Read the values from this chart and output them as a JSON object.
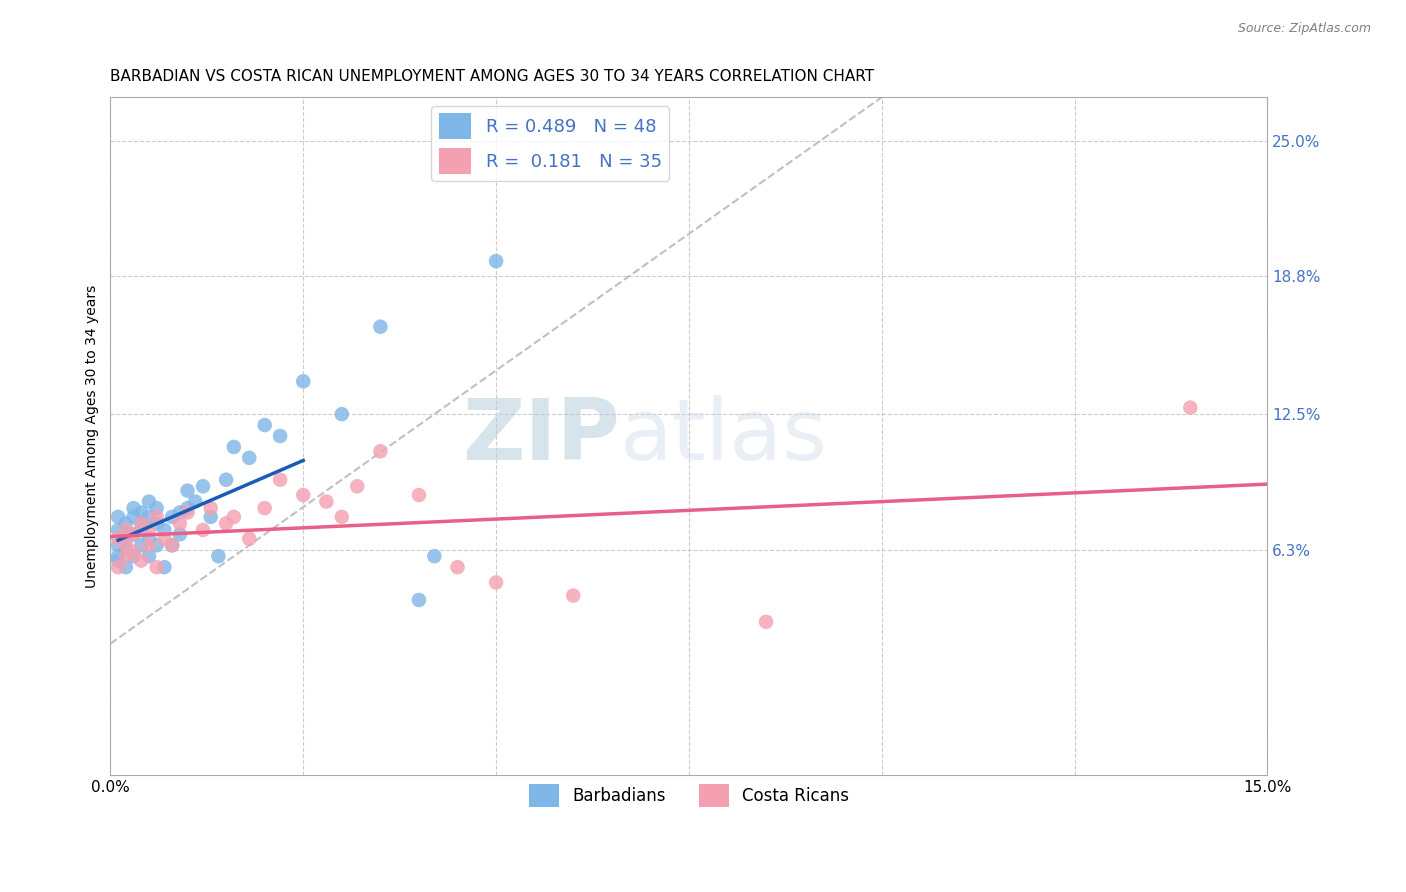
{
  "title": "BARBADIAN VS COSTA RICAN UNEMPLOYMENT AMONG AGES 30 TO 34 YEARS CORRELATION CHART",
  "source": "Source: ZipAtlas.com",
  "ylabel": "Unemployment Among Ages 30 to 34 years",
  "xlim": [
    0.0,
    0.15
  ],
  "ylim": [
    -0.04,
    0.27
  ],
  "xtick_vals": [
    0.0,
    0.025,
    0.05,
    0.075,
    0.1,
    0.125,
    0.15
  ],
  "xtick_labels": [
    "0.0%",
    "",
    "",
    "",
    "",
    "",
    "15.0%"
  ],
  "right_yticks": [
    0.063,
    0.125,
    0.188,
    0.25
  ],
  "right_yticklabels": [
    "6.3%",
    "12.5%",
    "18.8%",
    "25.0%"
  ],
  "barbadian_x": [
    0.001,
    0.001,
    0.001,
    0.001,
    0.001,
    0.002,
    0.002,
    0.002,
    0.002,
    0.002,
    0.003,
    0.003,
    0.003,
    0.003,
    0.004,
    0.004,
    0.004,
    0.004,
    0.005,
    0.005,
    0.005,
    0.005,
    0.006,
    0.006,
    0.006,
    0.007,
    0.007,
    0.008,
    0.008,
    0.009,
    0.009,
    0.01,
    0.01,
    0.011,
    0.012,
    0.013,
    0.014,
    0.015,
    0.016,
    0.018,
    0.02,
    0.022,
    0.025,
    0.03,
    0.035,
    0.04,
    0.042,
    0.05
  ],
  "barbadian_y": [
    0.058,
    0.065,
    0.072,
    0.078,
    0.06,
    0.063,
    0.07,
    0.075,
    0.068,
    0.055,
    0.07,
    0.078,
    0.082,
    0.06,
    0.072,
    0.065,
    0.08,
    0.075,
    0.078,
    0.085,
    0.068,
    0.06,
    0.075,
    0.082,
    0.065,
    0.072,
    0.055,
    0.078,
    0.065,
    0.08,
    0.07,
    0.082,
    0.09,
    0.085,
    0.092,
    0.078,
    0.06,
    0.095,
    0.11,
    0.105,
    0.12,
    0.115,
    0.14,
    0.125,
    0.165,
    0.04,
    0.06,
    0.195
  ],
  "costarican_x": [
    0.001,
    0.001,
    0.002,
    0.002,
    0.002,
    0.003,
    0.003,
    0.004,
    0.004,
    0.005,
    0.005,
    0.006,
    0.006,
    0.007,
    0.008,
    0.009,
    0.01,
    0.012,
    0.013,
    0.015,
    0.016,
    0.018,
    0.02,
    0.022,
    0.025,
    0.028,
    0.03,
    0.032,
    0.035,
    0.04,
    0.045,
    0.05,
    0.06,
    0.085,
    0.14
  ],
  "costarican_y": [
    0.055,
    0.068,
    0.06,
    0.072,
    0.065,
    0.062,
    0.07,
    0.058,
    0.075,
    0.065,
    0.072,
    0.055,
    0.078,
    0.068,
    0.065,
    0.075,
    0.08,
    0.072,
    0.082,
    0.075,
    0.078,
    0.068,
    0.082,
    0.095,
    0.088,
    0.085,
    0.078,
    0.092,
    0.108,
    0.088,
    0.055,
    0.048,
    0.042,
    0.03,
    0.128
  ],
  "barbadian_color": "#7EB6E8",
  "costarican_color": "#F4A0B0",
  "barbadian_line_color": "#1A5CB5",
  "costarican_line_color": "#E8608A",
  "ref_line_color": "#C0C0C0",
  "legend_R1": "R = 0.489",
  "legend_N1": "N = 48",
  "legend_R2": "R =  0.181",
  "legend_N2": "N = 35",
  "watermark_zip": "ZIP",
  "watermark_atlas": "atlas",
  "title_fontsize": 11,
  "axis_label_fontsize": 10,
  "tick_fontsize": 11,
  "right_tick_color": "#4472C4",
  "legend_color": "#4472C4"
}
